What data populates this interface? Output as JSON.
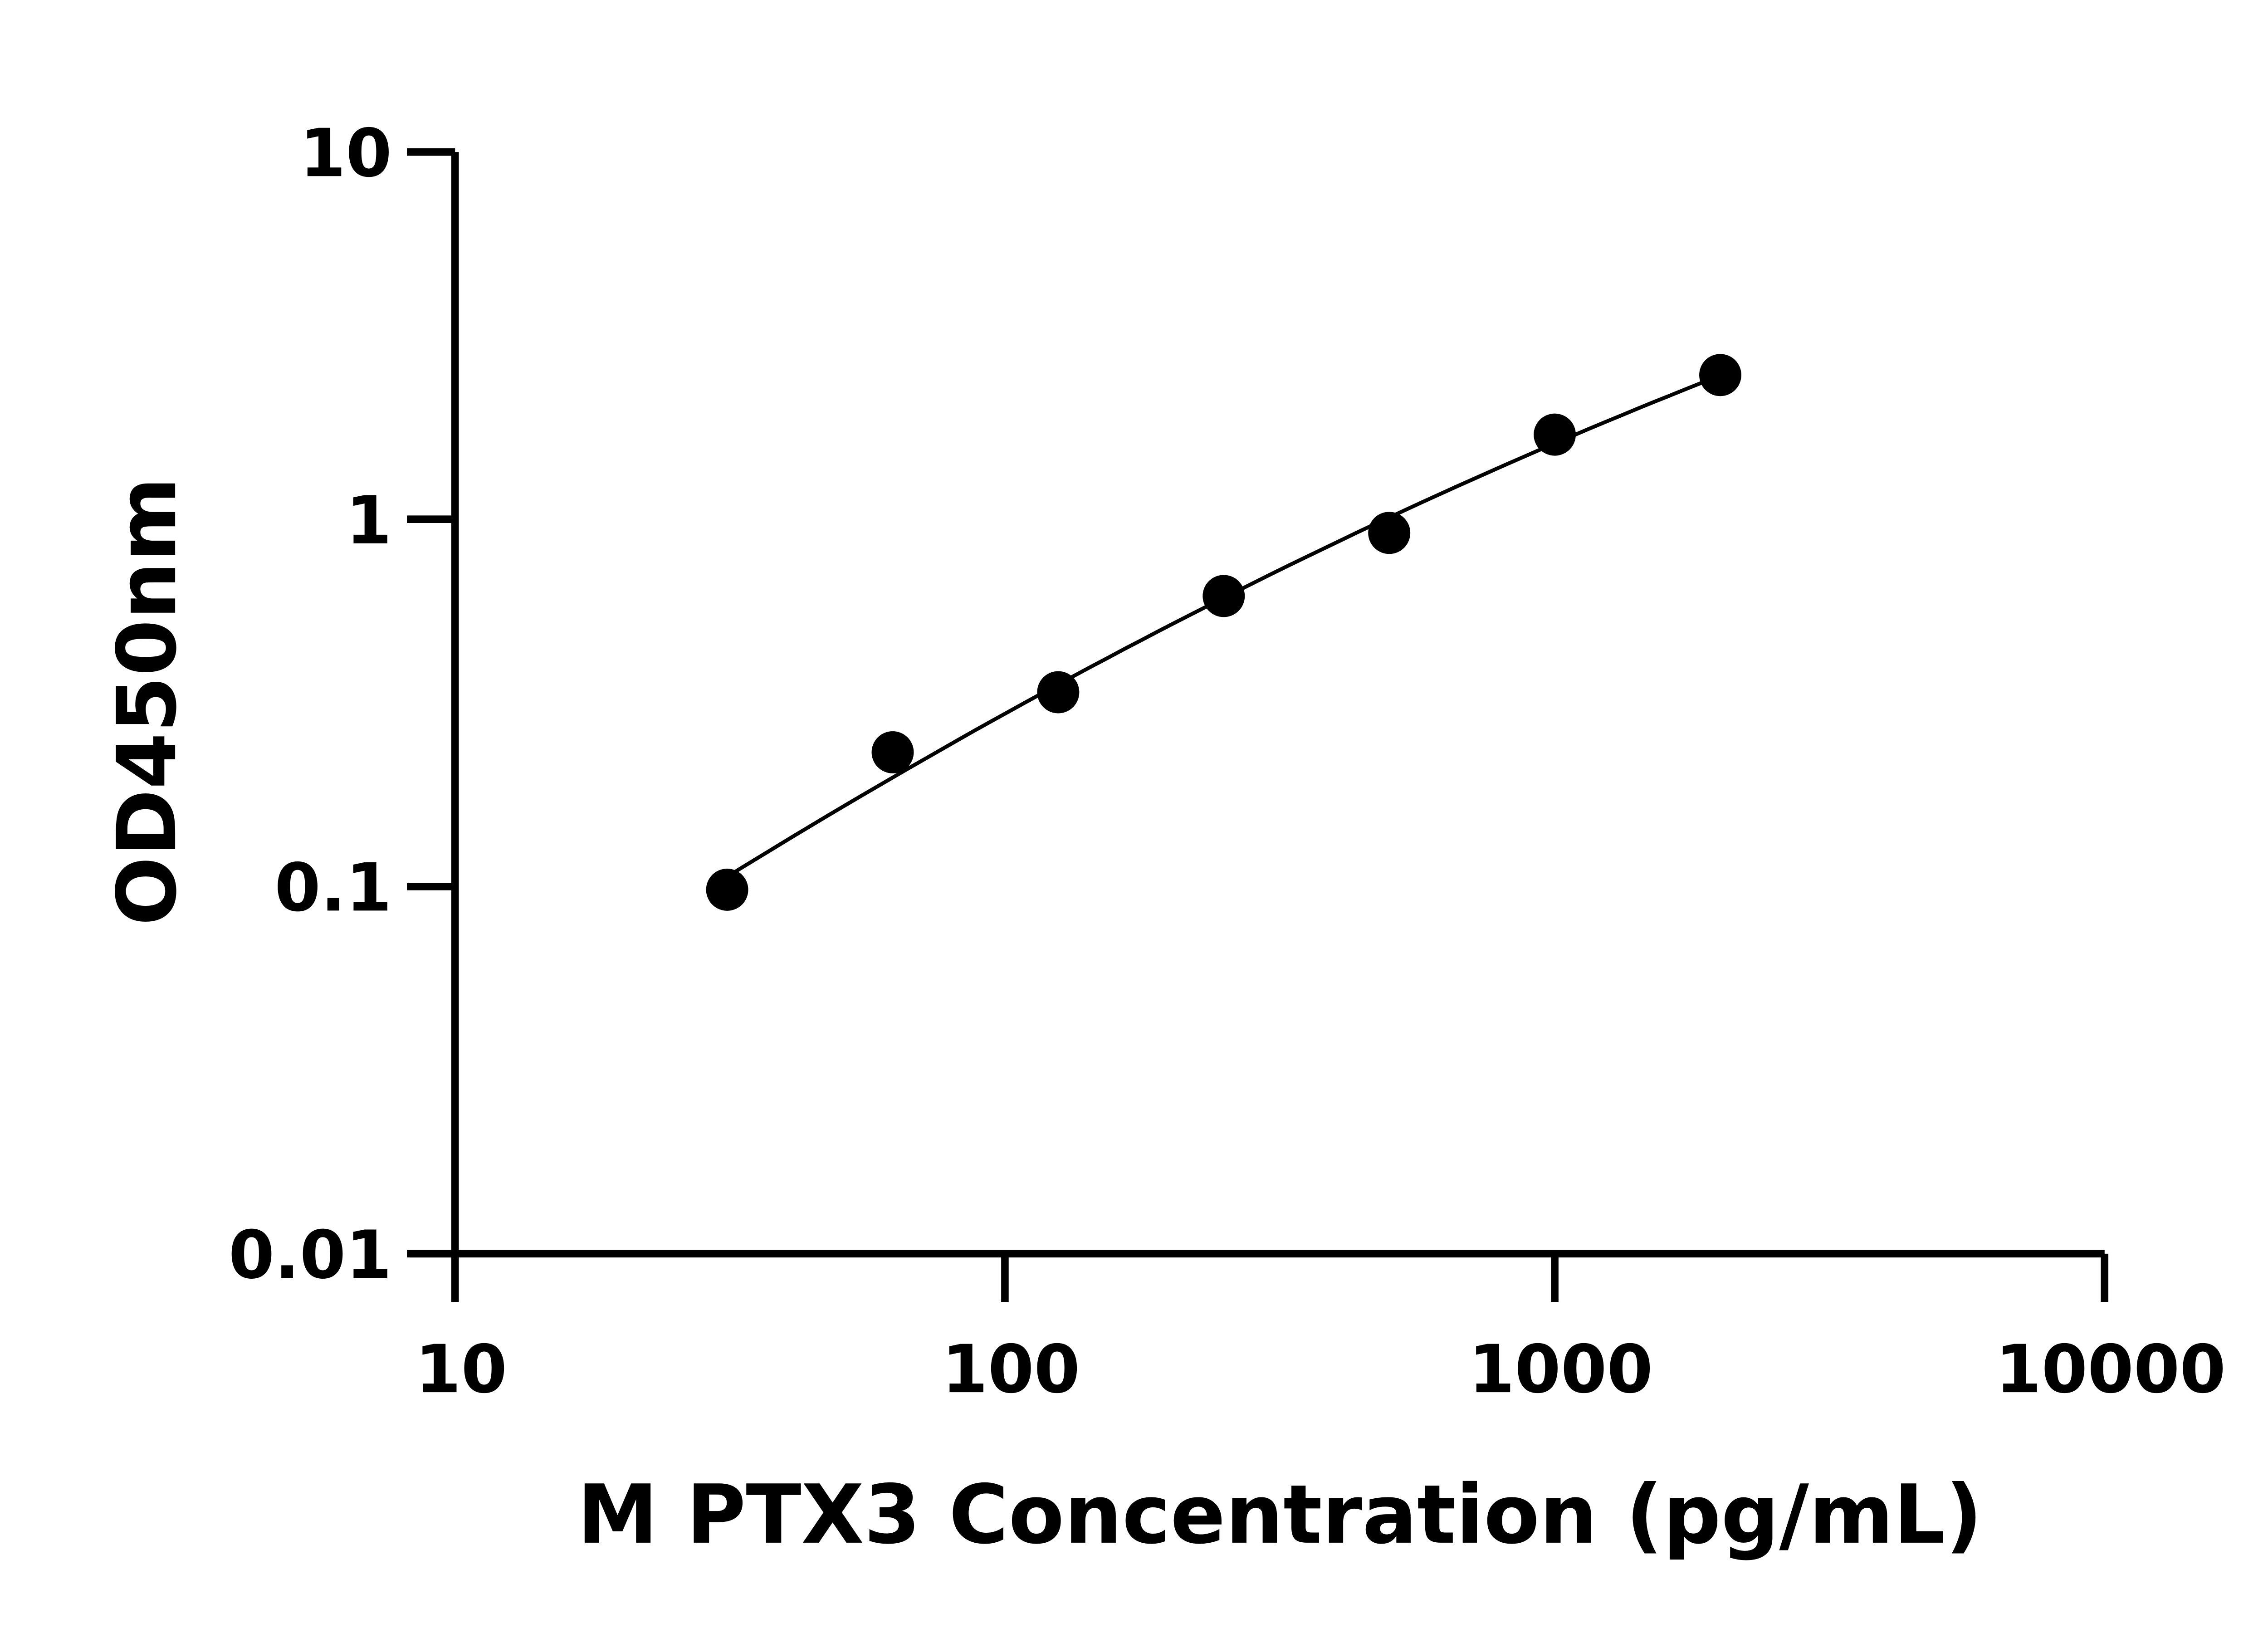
{
  "chart_data": {
    "type": "scatter",
    "title": "",
    "xlabel": "M PTX3 Concentration (pg/mL)",
    "ylabel": "OD450nm",
    "x_scale": "log",
    "y_scale": "log",
    "xlim": [
      10,
      10000
    ],
    "ylim": [
      0.01,
      10
    ],
    "x_ticks": [
      "10",
      "100",
      "1000",
      "10000"
    ],
    "y_ticks": [
      "0.01",
      "0.1",
      "1",
      "10"
    ],
    "grid": false,
    "fit_curve": true,
    "series": [
      {
        "x": [
          31.25,
          62.5,
          125,
          250,
          500,
          1000,
          2000
        ],
        "y": [
          0.098,
          0.232,
          0.338,
          0.618,
          0.918,
          1.7,
          2.47
        ]
      }
    ],
    "colors": {
      "marker": "#000000",
      "line": "#000000"
    }
  }
}
